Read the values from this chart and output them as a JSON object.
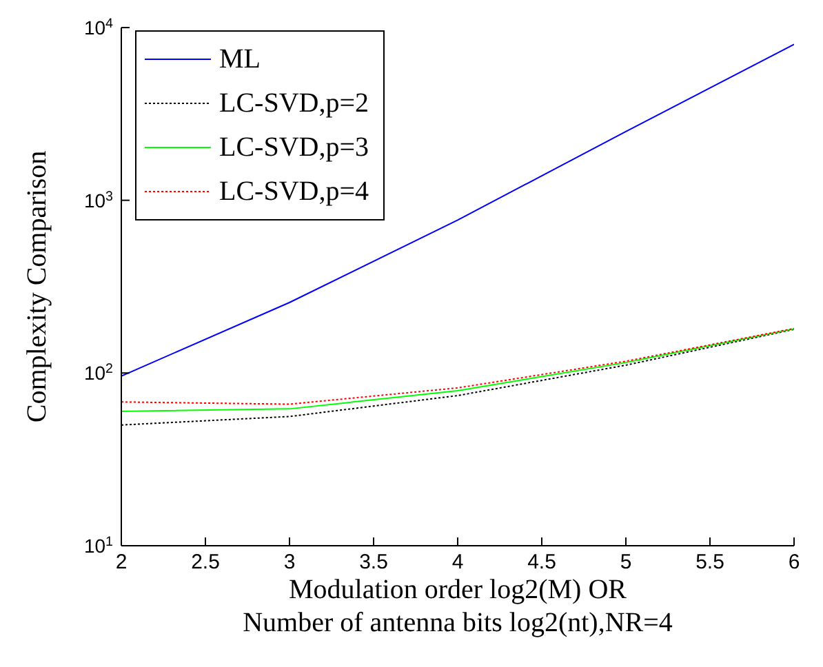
{
  "chart_data": {
    "type": "line",
    "xlabel": "Modulation order log2(M) OR\nNumber of antenna bits log2(nt),NR=4",
    "ylabel": "Complexity Comparison",
    "x": [
      2,
      3,
      4,
      5,
      6
    ],
    "series": [
      {
        "name": "ML",
        "color": "#0000ff",
        "values": [
          96,
          256,
          768,
          2500,
          8000
        ]
      },
      {
        "name": "LC-SVD,p=2",
        "color": "#000000",
        "values": [
          50,
          56,
          74,
          111,
          179
        ],
        "line_style": "dotted"
      },
      {
        "name": "LC-SVD,p=3",
        "color": "#00ff00",
        "values": [
          60,
          62,
          79,
          115,
          180
        ]
      },
      {
        "name": "LC-SVD,p=4",
        "color": "#ff0000",
        "values": [
          68,
          66,
          82,
          117,
          181
        ],
        "line_style": "dotted"
      }
    ],
    "xlim": [
      2,
      6
    ],
    "xticks": [
      2,
      2.5,
      3,
      3.5,
      4,
      4.5,
      5,
      5.5,
      6
    ],
    "ylim": [
      10,
      10000
    ],
    "yticks": [
      {
        "value": 10,
        "label": "10$^{1}$"
      },
      {
        "value": 100,
        "label": "10$^{2}$"
      },
      {
        "value": 1000,
        "label": "10$^{3}$"
      },
      {
        "value": 10000,
        "label": "10$^{4}$"
      }
    ],
    "log": "y",
    "grid": false,
    "legend": "top left",
    "marker": "none"
  }
}
